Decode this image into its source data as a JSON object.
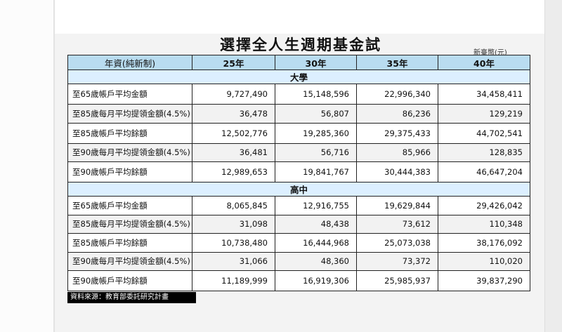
{
  "title": "選擇全人生週期基金試算",
  "unit": "新臺幣(元)",
  "headers": [
    "年資(純新制)",
    "25年",
    "30年",
    "35年",
    "40年"
  ],
  "sections": [
    {
      "name": "大學",
      "rows": [
        {
          "label": "至65歲帳戶平均金額",
          "values": [
            "9,727,490",
            "15,148,596",
            "22,996,340",
            "34,458,411"
          ]
        },
        {
          "label": "至85歲每月平均提領金額(4.5%)",
          "values": [
            "36,478",
            "56,807",
            "86,236",
            "129,219"
          ]
        },
        {
          "label": "至85歲帳戶平均餘額",
          "values": [
            "12,502,776",
            "19,285,360",
            "29,375,433",
            "44,702,541"
          ]
        },
        {
          "label": "至90歲每月平均提領金額(4.5%)",
          "values": [
            "36,481",
            "56,716",
            "85,966",
            "128,835"
          ]
        },
        {
          "label": "至90歲帳戶平均餘額",
          "values": [
            "12,989,653",
            "19,841,767",
            "30,444,383",
            "46,647,204"
          ]
        }
      ]
    },
    {
      "name": "高中",
      "rows": [
        {
          "label": "至65歲帳戶平均金額",
          "values": [
            "8,065,845",
            "12,916,755",
            "19,629,844",
            "29,426,042"
          ]
        },
        {
          "label": "至85歲每月平均提領金額(4.5%)",
          "values": [
            "31,098",
            "48,438",
            "73,612",
            "110,348"
          ]
        },
        {
          "label": "至85歲帳戶平均餘額",
          "values": [
            "10,738,480",
            "16,444,968",
            "25,073,038",
            "38,176,092"
          ]
        },
        {
          "label": "至90歲每月平均提領金額(4.5%)",
          "values": [
            "31,066",
            "48,360",
            "73,372",
            "110,020"
          ]
        },
        {
          "label": "至90歲帳戶平均餘額",
          "values": [
            "11,189,999",
            "16,919,306",
            "25,985,937",
            "39,837,290"
          ]
        }
      ]
    }
  ],
  "source": "資料來源：教育部委託研究計畫"
}
